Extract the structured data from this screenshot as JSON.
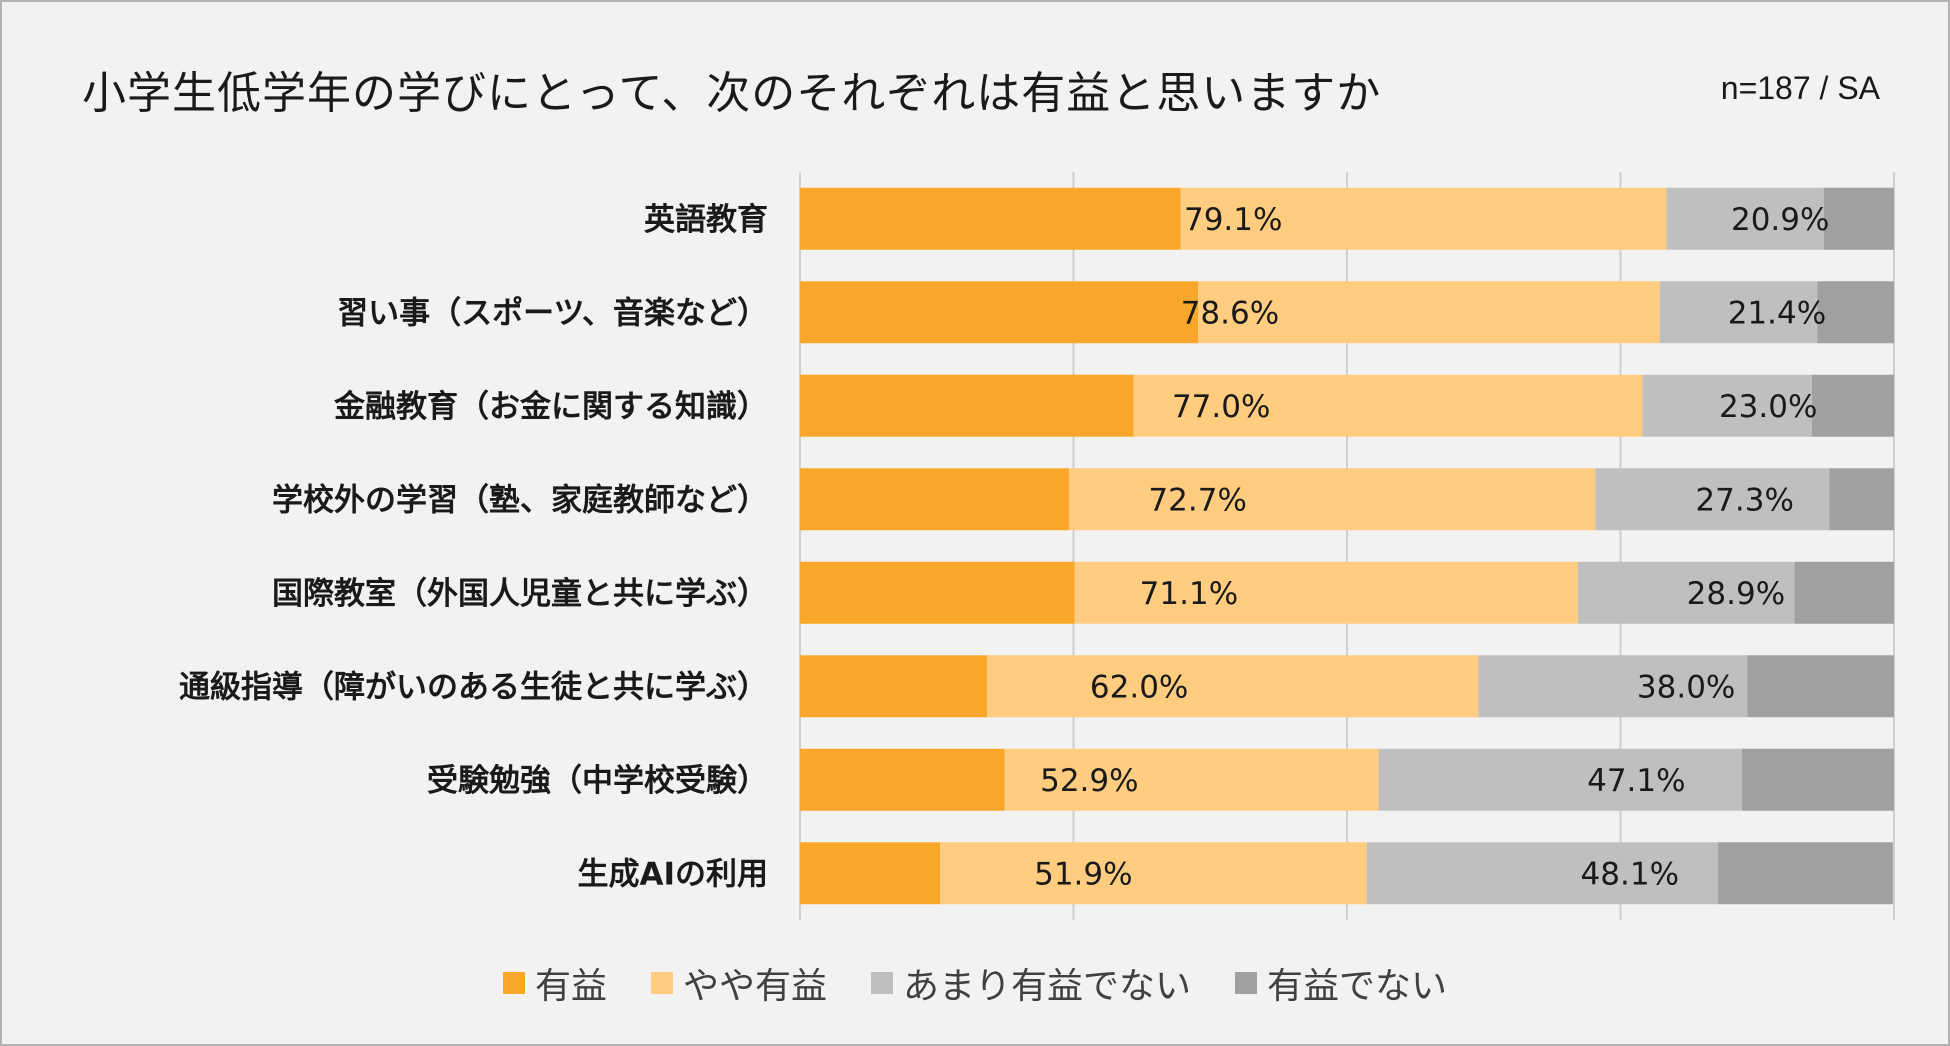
{
  "title": "小学生低学年の学びにとって、次のそれぞれは有益と思いますか",
  "note": "n=187 / SA",
  "colors": {
    "yuueki": "#f9a72b",
    "yaya": "#ffcc80",
    "amari": "#bfbfbf",
    "nai": "#a0a0a0",
    "grid": "#cfcfcf",
    "background": "#f2f2f2"
  },
  "legend": [
    {
      "label": "有益",
      "color": "#f9a72b"
    },
    {
      "label": "やや有益",
      "color": "#ffcc80"
    },
    {
      "label": "あまり有益でない",
      "color": "#bfbfbf"
    },
    {
      "label": "有益でない",
      "color": "#a0a0a0"
    }
  ],
  "chart_data": {
    "type": "bar",
    "orientation": "horizontal",
    "stacked": true,
    "title": "小学生低学年の学びにとって、次のそれぞれは有益と思いますか",
    "xlim": [
      0,
      100
    ],
    "grid": true,
    "legend_position": "bottom",
    "categories": [
      "英語教育",
      "習い事（スポーツ、音楽など）",
      "金融教育（お金に関する知識）",
      "学校外の学習（塾、家庭教師など）",
      "国際教室（外国人児童と共に学ぶ）",
      "通級指導（障がいのある生徒と共に学ぶ）",
      "受験勉強（中学校受験）",
      "生成AIの利用"
    ],
    "series": [
      {
        "name": "有益",
        "values": [
          34.8,
          36.4,
          30.5,
          24.6,
          25.1,
          17.1,
          18.7,
          12.8
        ]
      },
      {
        "name": "やや有益",
        "values": [
          44.4,
          42.2,
          46.5,
          48.1,
          46.0,
          44.9,
          34.2,
          39.0
        ]
      },
      {
        "name": "あまり有益でない",
        "values": [
          14.4,
          14.4,
          15.5,
          21.4,
          19.8,
          24.6,
          33.2,
          32.1
        ]
      },
      {
        "name": "有益でない",
        "values": [
          6.4,
          7.0,
          7.5,
          5.9,
          9.1,
          13.4,
          13.9,
          16.0
        ]
      }
    ],
    "labels_positive": [
      "79.1%",
      "78.6%",
      "77.0%",
      "72.7%",
      "71.1%",
      "62.0%",
      "52.9%",
      "51.9%"
    ],
    "labels_negative": [
      "20.9%",
      "21.4%",
      "23.0%",
      "27.3%",
      "28.9%",
      "38.0%",
      "47.1%",
      "48.1%"
    ]
  }
}
